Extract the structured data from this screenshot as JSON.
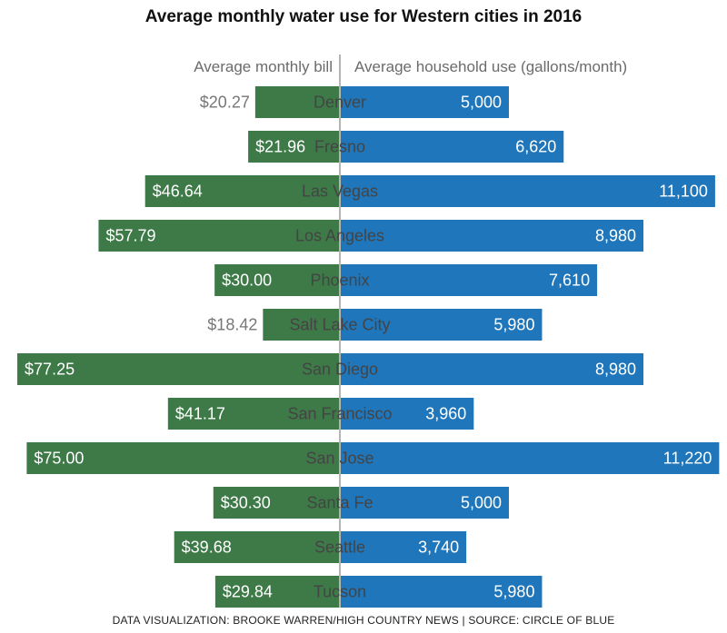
{
  "chart_data": {
    "type": "bar",
    "title": "Average monthly water use for Western cities in 2016",
    "left_header": "Average monthly bill",
    "right_header": "Average household use (gallons/month)",
    "colors": {
      "bill": "#3d7a47",
      "use": "#1f76bb",
      "axis": "#b4b4b4"
    },
    "categories": [
      "Denver",
      "Fresno",
      "Las Vegas",
      "Los Angeles",
      "Phoenix",
      "Salt Lake City",
      "San Diego",
      "San Francisco",
      "San Jose",
      "Santa Fe",
      "Seattle",
      "Tucson"
    ],
    "series": [
      {
        "name": "Average monthly bill",
        "values": [
          20.27,
          21.96,
          46.64,
          57.79,
          30.0,
          18.42,
          77.25,
          41.17,
          75.0,
          30.3,
          39.68,
          29.84
        ],
        "labels": [
          "$20.27",
          "$21.96",
          "$46.64",
          "$57.79",
          "$30.00",
          "$18.42",
          "$77.25",
          "$41.17",
          "$75.00",
          "$30.30",
          "$39.68",
          "$29.84"
        ]
      },
      {
        "name": "Average household use (gallons/month)",
        "values": [
          5000,
          6620,
          11100,
          8980,
          7610,
          5980,
          8980,
          3960,
          11220,
          5000,
          3740,
          5980
        ],
        "labels": [
          "5,000",
          "6,620",
          "11,100",
          "8,980",
          "7,610",
          "5,980",
          "8,980",
          "3,960",
          "11,220",
          "5,000",
          "3,740",
          "5,980"
        ]
      }
    ]
  },
  "credit": "DATA VISUALIZATION: BROOKE WARREN/HIGH COUNTRY NEWS | SOURCE: CIRCLE OF BLUE"
}
